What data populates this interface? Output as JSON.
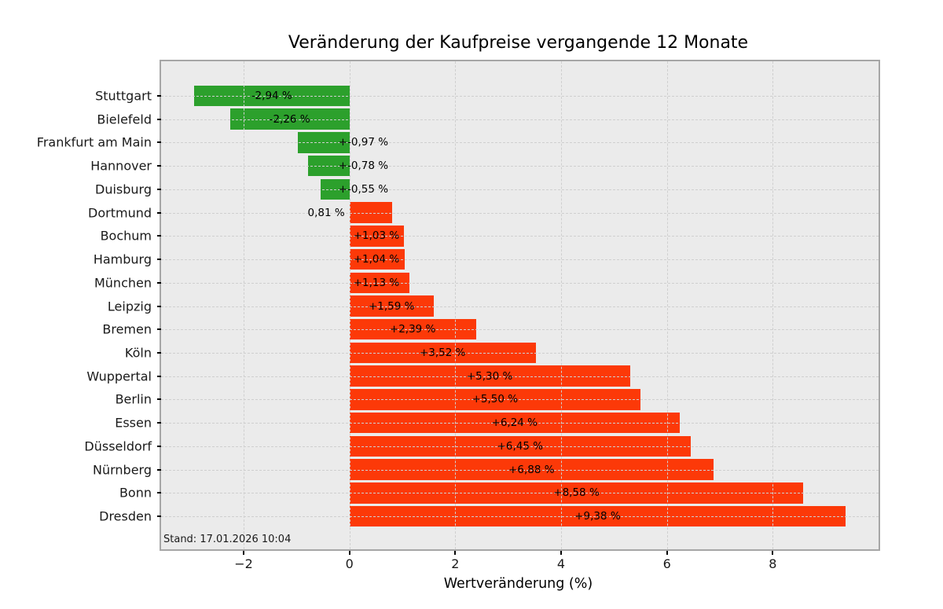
{
  "chart_data": {
    "type": "bar",
    "orientation": "horizontal",
    "title": "Veränderung der Kaufpreise vergangende 12 Monate",
    "xlabel": "Wertveränderung (%)",
    "categories": [
      "Stuttgart",
      "Bielefeld",
      "Frankfurt am Main",
      "Hannover",
      "Duisburg",
      "Dortmund",
      "Bochum",
      "Hamburg",
      "München",
      "Leipzig",
      "Bremen",
      "Köln",
      "Wuppertal",
      "Berlin",
      "Essen",
      "Düsseldorf",
      "Nürnberg",
      "Bonn",
      "Dresden"
    ],
    "values": [
      -2.94,
      -2.26,
      -0.97,
      -0.78,
      -0.55,
      0.81,
      1.03,
      1.04,
      1.13,
      1.59,
      2.39,
      3.52,
      5.3,
      5.5,
      6.24,
      6.45,
      6.88,
      8.58,
      9.38
    ],
    "bar_labels": [
      "-2,94 %",
      "-2,26 %",
      "+-0,97 %",
      "+-0,78 %",
      "+-0,55 %",
      "0,81 %",
      "+1,03 %",
      "+1,04 %",
      "+1,13 %",
      "+1,59 %",
      "+2,39 %",
      "+3,52 %",
      "+5,30 %",
      "+5,50 %",
      "+6,24 %",
      "+6,45 %",
      "+6,88 %",
      "+8,58 %",
      "+9,38 %"
    ],
    "xlim": [
      -3.56,
      10.0
    ],
    "x_ticks": [
      -2,
      0,
      2,
      4,
      6,
      8
    ],
    "x_tick_labels": [
      "−2",
      "0",
      "2",
      "4",
      "6",
      "8"
    ],
    "grid": "dashed, both axes, drawn over bars",
    "legend": "none",
    "colors": {
      "negative_bar": "#2ca02c",
      "positive_bar": "#fc3908",
      "plot_background": "#ebebeb",
      "figure_background": "#ffffff",
      "gridline": "#cfcfcf",
      "spine": "#a6a6a6",
      "text": "#000000"
    }
  },
  "footnote": "Stand: 17.01.2026 10:04"
}
